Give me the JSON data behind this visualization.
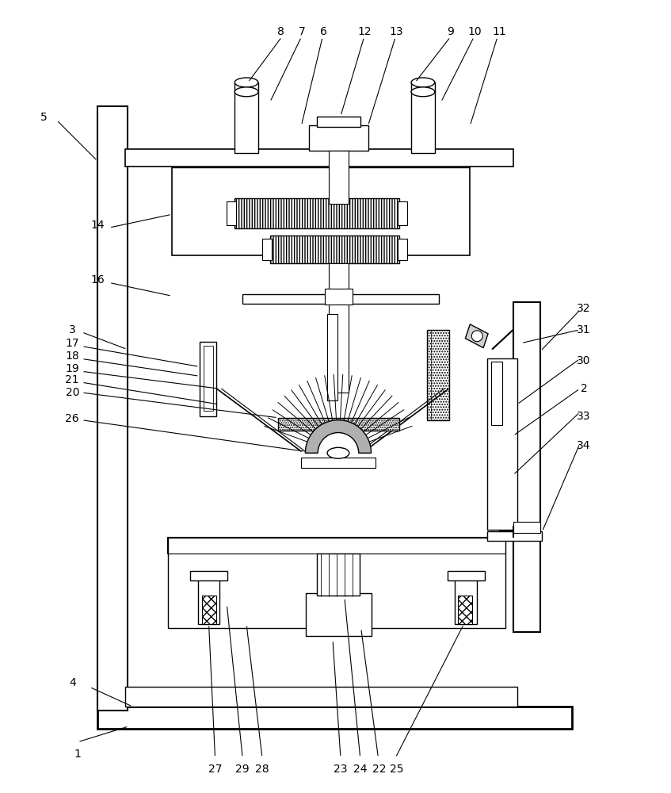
{
  "bg_color": "#ffffff",
  "line_color": "#000000",
  "lw": 1.0,
  "fig_width": 8.47,
  "fig_height": 10.0
}
